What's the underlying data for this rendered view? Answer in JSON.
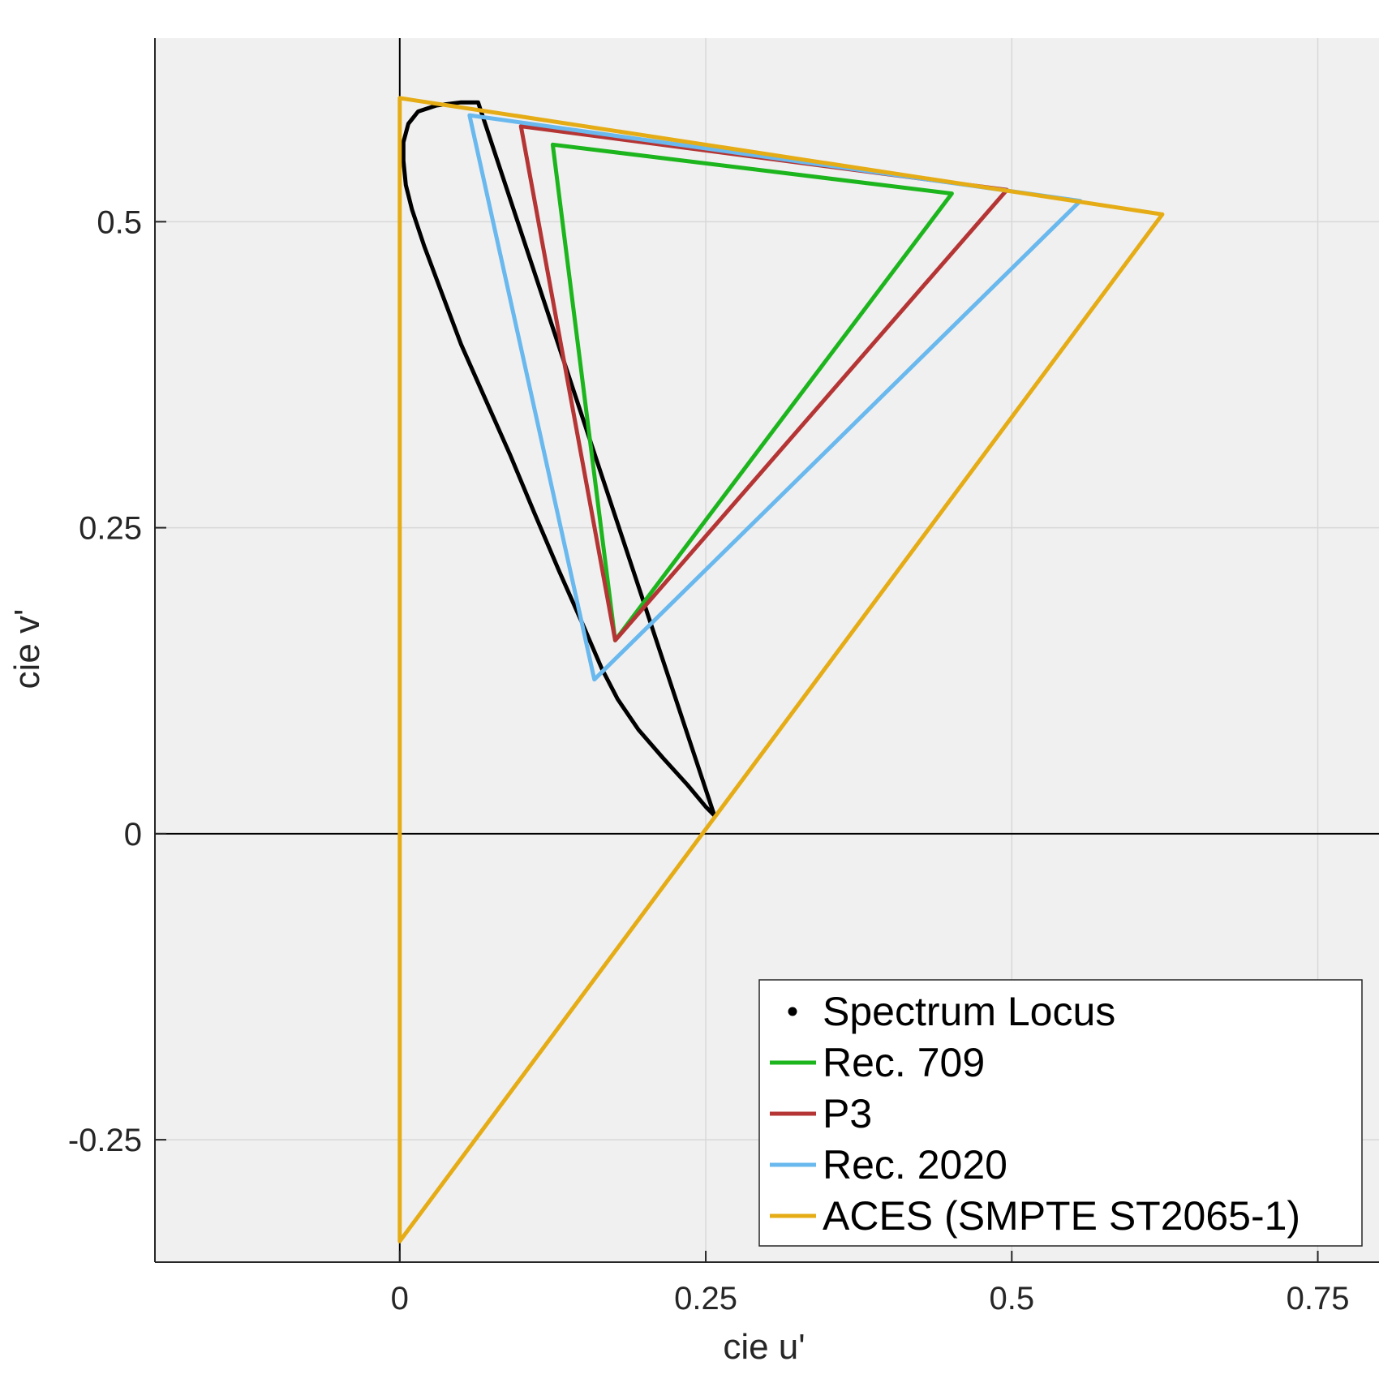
{
  "chart_data": {
    "type": "line",
    "title": "",
    "xlabel": "cie u'",
    "ylabel": "cie v'",
    "xlim": [
      -0.2,
      0.8
    ],
    "ylim": [
      -0.35,
      0.65
    ],
    "xticks": [
      0,
      0.25,
      0.5,
      0.75
    ],
    "xtick_labels": [
      "0",
      "0.25",
      "0.5",
      "0.75"
    ],
    "yticks": [
      -0.25,
      0,
      0.25,
      0.5
    ],
    "ytick_labels": [
      "-0.25",
      "0",
      "0.25",
      "0.5"
    ],
    "grid": true,
    "axes_background": "#f0f0f0",
    "legend_position": "bottom-right",
    "series": [
      {
        "name": "Spectrum Locus",
        "color": "#000000",
        "marker": "dot",
        "x": [
          0.257,
          0.25,
          0.235,
          0.215,
          0.195,
          0.178,
          0.165,
          0.15,
          0.13,
          0.11,
          0.09,
          0.07,
          0.05,
          0.035,
          0.02,
          0.01,
          0.005,
          0.003,
          0.003,
          0.007,
          0.015,
          0.03,
          0.05,
          0.064,
          0.257
        ],
        "y": [
          0.015,
          0.022,
          0.04,
          0.062,
          0.085,
          0.11,
          0.135,
          0.17,
          0.215,
          0.262,
          0.31,
          0.355,
          0.4,
          0.44,
          0.48,
          0.51,
          0.53,
          0.55,
          0.565,
          0.58,
          0.59,
          0.595,
          0.5975,
          0.5975,
          0.015
        ]
      },
      {
        "name": "Rec. 709",
        "color": "#1db51d",
        "x": [
          0.451,
          0.125,
          0.176,
          0.451
        ],
        "y": [
          0.523,
          0.563,
          0.158,
          0.523
        ]
      },
      {
        "name": "P3",
        "color": "#b53535",
        "x": [
          0.496,
          0.099,
          0.176,
          0.496
        ],
        "y": [
          0.526,
          0.578,
          0.158,
          0.526
        ]
      },
      {
        "name": "Rec. 2020",
        "color": "#69b8ee",
        "x": [
          0.556,
          0.057,
          0.159,
          0.556
        ],
        "y": [
          0.517,
          0.587,
          0.126,
          0.517
        ]
      },
      {
        "name": "ACES (SMPTE ST2065-1)",
        "color": "#e5ac16",
        "x": [
          0.623,
          0.0,
          0.0,
          0.623
        ],
        "y": [
          0.506,
          0.601,
          -0.333,
          0.506
        ]
      }
    ]
  }
}
